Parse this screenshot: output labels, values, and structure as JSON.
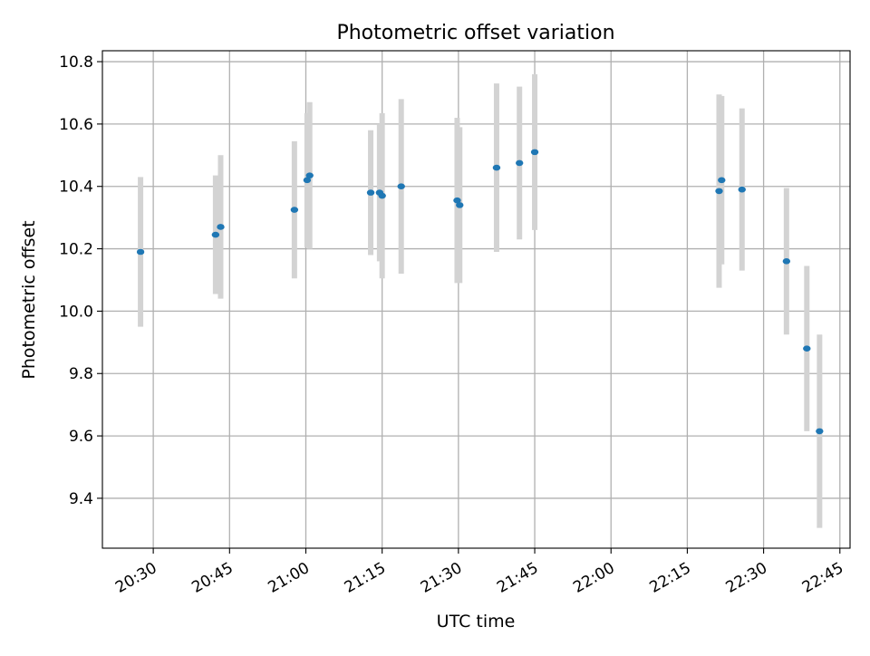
{
  "chart_data": {
    "type": "scatter",
    "title": "Photometric offset variation",
    "xlabel": "UTC time",
    "ylabel": "Photometric offset",
    "x_unit": "UTC time of day (HH:MM)",
    "xlim": [
      "20:20",
      "22:47"
    ],
    "ylim": [
      9.24,
      10.835
    ],
    "x_ticks": [
      "20:30",
      "20:45",
      "21:00",
      "21:15",
      "21:30",
      "21:45",
      "22:00",
      "22:15",
      "22:30",
      "22:45"
    ],
    "y_ticks": [
      9.4,
      9.6,
      9.8,
      10.0,
      10.2,
      10.4,
      10.6,
      10.8
    ],
    "y_tick_labels": [
      "9.4",
      "9.6",
      "9.8",
      "10.0",
      "10.2",
      "10.4",
      "10.6",
      "10.8"
    ],
    "grid": true,
    "legend": "none",
    "colors": {
      "point": "#1f77b4",
      "error_bar": "#d3d3d3",
      "grid": "#b0b0b0"
    },
    "series": [
      {
        "points": [
          {
            "x": "20:27:30",
            "y": 10.19,
            "err": 0.24
          },
          {
            "x": "20:42:15",
            "y": 10.245,
            "err": 0.19
          },
          {
            "x": "20:43:15",
            "y": 10.27,
            "err": 0.23
          },
          {
            "x": "20:57:45",
            "y": 10.325,
            "err": 0.22
          },
          {
            "x": "21:00:15",
            "y": 10.42,
            "err": 0.215
          },
          {
            "x": "21:00:45",
            "y": 10.435,
            "err": 0.235
          },
          {
            "x": "21:12:45",
            "y": 10.38,
            "err": 0.2
          },
          {
            "x": "21:14:30",
            "y": 10.38,
            "err": 0.22
          },
          {
            "x": "21:15:00",
            "y": 10.37,
            "err": 0.265
          },
          {
            "x": "21:18:45",
            "y": 10.4,
            "err": 0.28
          },
          {
            "x": "21:29:45",
            "y": 10.355,
            "err": 0.265
          },
          {
            "x": "21:30:15",
            "y": 10.34,
            "err": 0.25
          },
          {
            "x": "21:37:30",
            "y": 10.46,
            "err": 0.27
          },
          {
            "x": "21:42:00",
            "y": 10.475,
            "err": 0.245
          },
          {
            "x": "21:45:00",
            "y": 10.51,
            "err": 0.25
          },
          {
            "x": "22:21:15",
            "y": 10.385,
            "err": 0.31
          },
          {
            "x": "22:21:45",
            "y": 10.42,
            "err": 0.27
          },
          {
            "x": "22:25:45",
            "y": 10.39,
            "err": 0.26
          },
          {
            "x": "22:34:30",
            "y": 10.16,
            "err": 0.235
          },
          {
            "x": "22:38:30",
            "y": 9.88,
            "err": 0.265
          },
          {
            "x": "22:41:00",
            "y": 9.615,
            "err": 0.31
          }
        ]
      }
    ]
  }
}
